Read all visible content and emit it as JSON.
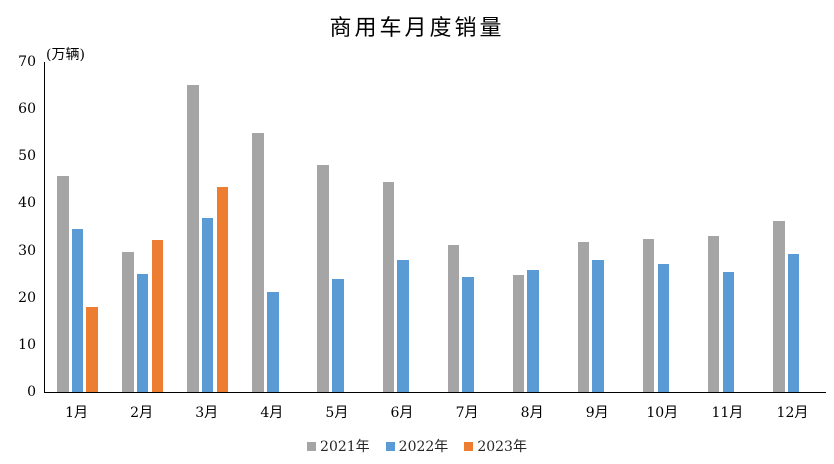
{
  "chart_data": {
    "type": "bar",
    "title": "商用车月度销量",
    "unit_label": "(万辆)",
    "categories": [
      "1月",
      "2月",
      "3月",
      "4月",
      "5月",
      "6月",
      "7月",
      "8月",
      "9月",
      "10月",
      "11月",
      "12月"
    ],
    "series": [
      {
        "name": "2021年",
        "color": "#A5A5A5",
        "values": [
          45.9,
          29.7,
          65.2,
          55.0,
          48.1,
          44.6,
          31.2,
          24.8,
          31.8,
          32.5,
          33.0,
          36.3
        ]
      },
      {
        "name": "2022年",
        "color": "#5B9BD5",
        "values": [
          34.5,
          25.1,
          37.0,
          21.2,
          23.9,
          28.1,
          24.5,
          25.8,
          28.0,
          27.2,
          25.4,
          29.2
        ]
      },
      {
        "name": "2023年",
        "color": "#ED7D31",
        "values": [
          18.0,
          32.3,
          43.5,
          null,
          null,
          null,
          null,
          null,
          null,
          null,
          null,
          null
        ]
      }
    ],
    "ylim": [
      0,
      70
    ],
    "ytick_step": 10,
    "yticks": [
      "0",
      "10",
      "20",
      "30",
      "40",
      "50",
      "60",
      "70"
    ],
    "grid": false,
    "legend_position": "bottom",
    "axis_color": "#000000",
    "text_color": "#000000",
    "background_color": "#FFFFFF"
  }
}
